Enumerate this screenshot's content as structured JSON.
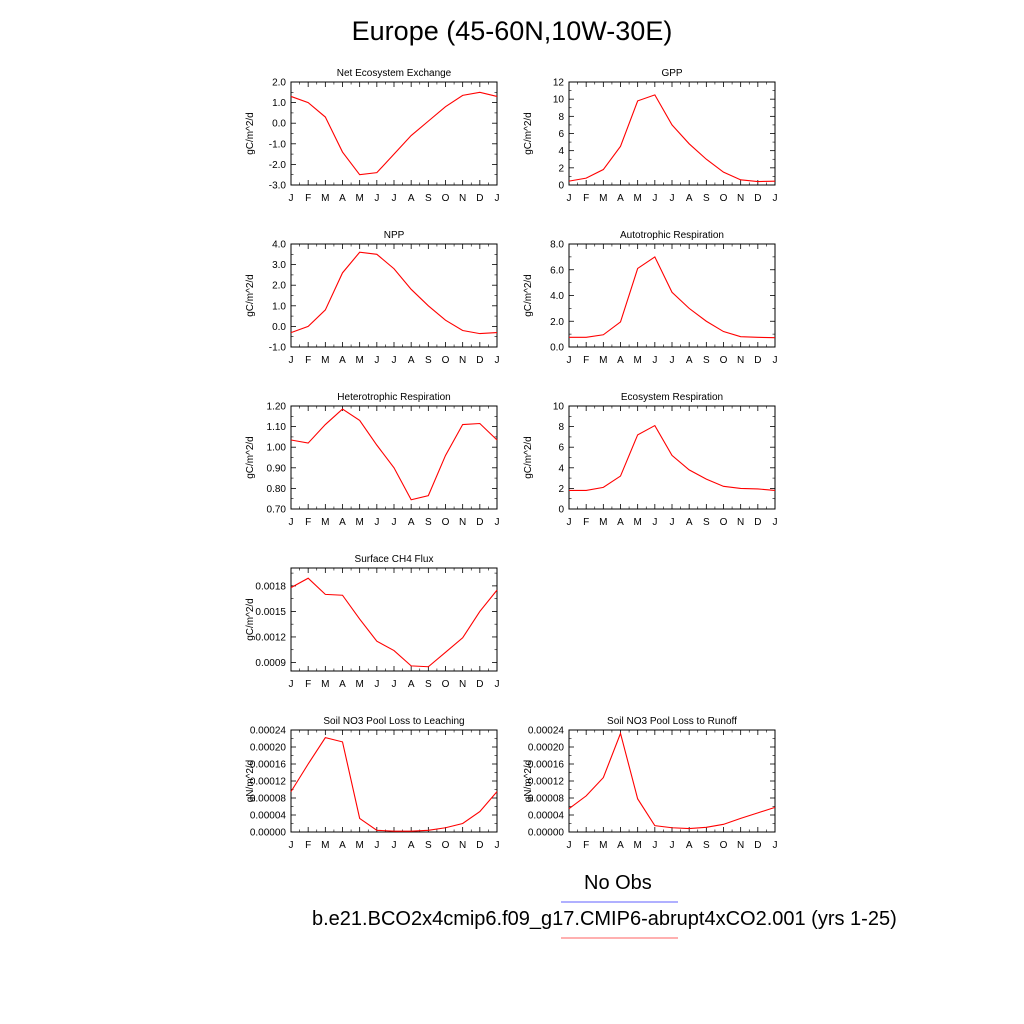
{
  "page": {
    "title": "Europe (45-60N,10W-30E)"
  },
  "legend": {
    "obs_label": "No Obs",
    "model_label": "b.e21.BCO2x4cmip6.f09_g17.CMIP6-abrupt4xCO2.001 (yrs 1-25)",
    "obs_color": "#8080ff",
    "model_color": "#ff8080"
  },
  "line_color": "#ff0000",
  "chart_data": [
    {
      "type": "line",
      "title": "Net Ecosystem Exchange",
      "ylabel": "gC/m^2/d",
      "categories": [
        "J",
        "F",
        "M",
        "A",
        "M",
        "J",
        "J",
        "A",
        "S",
        "O",
        "N",
        "D",
        "J"
      ],
      "ylim": [
        -3.0,
        2.0
      ],
      "yticks": [
        -3.0,
        -2.0,
        -1.0,
        0.0,
        1.0,
        2.0
      ],
      "ytick_labels": [
        "-3.0",
        "-2.0",
        "-1.0",
        "0.0",
        "1.0",
        "2.0"
      ],
      "values": [
        1.3,
        1.0,
        0.3,
        -1.4,
        -2.5,
        -2.4,
        -1.5,
        -0.6,
        0.1,
        0.8,
        1.35,
        1.5,
        1.3
      ]
    },
    {
      "type": "line",
      "title": "GPP",
      "ylabel": "gC/m^2/d",
      "categories": [
        "J",
        "F",
        "M",
        "A",
        "M",
        "J",
        "J",
        "A",
        "S",
        "O",
        "N",
        "D",
        "J"
      ],
      "ylim": [
        0,
        12
      ],
      "yticks": [
        0,
        2,
        4,
        6,
        8,
        10,
        12
      ],
      "ytick_labels": [
        "0",
        "2",
        "4",
        "6",
        "8",
        "10",
        "12"
      ],
      "values": [
        0.45,
        0.8,
        1.8,
        4.5,
        9.8,
        10.5,
        7.0,
        4.8,
        3.0,
        1.5,
        0.6,
        0.4,
        0.45
      ]
    },
    {
      "type": "line",
      "title": "NPP",
      "ylabel": "gC/m^2/d",
      "categories": [
        "J",
        "F",
        "M",
        "A",
        "M",
        "J",
        "J",
        "A",
        "S",
        "O",
        "N",
        "D",
        "J"
      ],
      "ylim": [
        -1.0,
        4.0
      ],
      "yticks": [
        -1.0,
        0.0,
        1.0,
        2.0,
        3.0,
        4.0
      ],
      "ytick_labels": [
        "-1.0",
        "0.0",
        "1.0",
        "2.0",
        "3.0",
        "4.0"
      ],
      "values": [
        -0.3,
        0.0,
        0.8,
        2.6,
        3.6,
        3.5,
        2.8,
        1.8,
        1.0,
        0.3,
        -0.2,
        -0.35,
        -0.3
      ]
    },
    {
      "type": "line",
      "title": "Autotrophic Respiration",
      "ylabel": "gC/m^2/d",
      "categories": [
        "J",
        "F",
        "M",
        "A",
        "M",
        "J",
        "J",
        "A",
        "S",
        "O",
        "N",
        "D",
        "J"
      ],
      "ylim": [
        0.0,
        8.0
      ],
      "yticks": [
        0.0,
        2.0,
        4.0,
        6.0,
        8.0
      ],
      "ytick_labels": [
        "0.0",
        "2.0",
        "4.0",
        "6.0",
        "8.0"
      ],
      "values": [
        0.75,
        0.75,
        0.95,
        1.95,
        6.1,
        7.0,
        4.25,
        3.0,
        2.0,
        1.2,
        0.8,
        0.75,
        0.72
      ]
    },
    {
      "type": "line",
      "title": "Heterotrophic Respiration",
      "ylabel": "gC/m^2/d",
      "categories": [
        "J",
        "F",
        "M",
        "A",
        "M",
        "J",
        "J",
        "A",
        "S",
        "O",
        "N",
        "D",
        "J"
      ],
      "ylim": [
        0.7,
        1.2
      ],
      "yticks": [
        0.7,
        0.8,
        0.9,
        1.0,
        1.1,
        1.2
      ],
      "ytick_labels": [
        "0.70",
        "0.80",
        "0.90",
        "1.00",
        "1.10",
        "1.20"
      ],
      "values": [
        1.035,
        1.02,
        1.11,
        1.185,
        1.13,
        1.01,
        0.9,
        0.745,
        0.765,
        0.96,
        1.11,
        1.115,
        1.035
      ]
    },
    {
      "type": "line",
      "title": "Ecosystem Respiration",
      "ylabel": "gC/m^2/d",
      "categories": [
        "J",
        "F",
        "M",
        "A",
        "M",
        "J",
        "J",
        "A",
        "S",
        "O",
        "N",
        "D",
        "J"
      ],
      "ylim": [
        0,
        10
      ],
      "yticks": [
        0,
        2,
        4,
        6,
        8,
        10
      ],
      "ytick_labels": [
        "0",
        "2",
        "4",
        "6",
        "8",
        "10"
      ],
      "values": [
        1.8,
        1.8,
        2.1,
        3.2,
        7.2,
        8.1,
        5.2,
        3.8,
        2.9,
        2.2,
        2.0,
        1.95,
        1.8
      ]
    },
    {
      "type": "line",
      "title": "Surface CH4 Flux",
      "ylabel": "gC/m^2/d",
      "categories": [
        "J",
        "F",
        "M",
        "A",
        "M",
        "J",
        "J",
        "A",
        "S",
        "O",
        "N",
        "D",
        "J"
      ],
      "ylim": [
        0.0008,
        0.00201
      ],
      "yticks": [
        0.0009,
        0.0012,
        0.0015,
        0.0018
      ],
      "ytick_labels": [
        "0.0009",
        "0.0012",
        "0.0015",
        "0.0018"
      ],
      "values": [
        0.00178,
        0.00189,
        0.0017,
        0.00169,
        0.00141,
        0.00115,
        0.00104,
        0.00086,
        0.00085,
        0.00102,
        0.00119,
        0.0015,
        0.00175
      ]
    },
    {
      "type": "line",
      "title": "Soil NO3 Pool Loss to Leaching",
      "ylabel": "gN/m^2/d",
      "categories": [
        "J",
        "F",
        "M",
        "A",
        "M",
        "J",
        "J",
        "A",
        "S",
        "O",
        "N",
        "D",
        "J"
      ],
      "ylim": [
        0.0,
        0.00024
      ],
      "yticks": [
        0.0,
        4e-05,
        8e-05,
        0.00012,
        0.00016,
        0.0002,
        0.00024
      ],
      "ytick_labels": [
        "0.00000",
        "0.00004",
        "0.00008",
        "0.00012",
        "0.00016",
        "0.00020",
        "0.00024"
      ],
      "values": [
        9.5e-05,
        0.00016,
        0.000222,
        0.000212,
        3.2e-05,
        4e-06,
        2e-06,
        2e-06,
        4e-06,
        1e-05,
        2e-05,
        4.8e-05,
        9.5e-05
      ]
    },
    {
      "type": "line",
      "title": "Soil NO3 Pool Loss to Runoff",
      "ylabel": "gN/m^2/d",
      "categories": [
        "J",
        "F",
        "M",
        "A",
        "M",
        "J",
        "J",
        "A",
        "S",
        "O",
        "N",
        "D",
        "J"
      ],
      "ylim": [
        0.0,
        0.00024
      ],
      "yticks": [
        0.0,
        4e-05,
        8e-05,
        0.00012,
        0.00016,
        0.0002,
        0.00024
      ],
      "ytick_labels": [
        "0.00000",
        "0.00004",
        "0.00008",
        "0.00012",
        "0.00016",
        "0.00020",
        "0.00024"
      ],
      "values": [
        5.5e-05,
        8.5e-05,
        0.000128,
        0.000232,
        7.8e-05,
        1.5e-05,
        1e-05,
        8e-06,
        1.1e-05,
        1.8e-05,
        3.2e-05,
        4.5e-05,
        5.8e-05
      ]
    }
  ]
}
